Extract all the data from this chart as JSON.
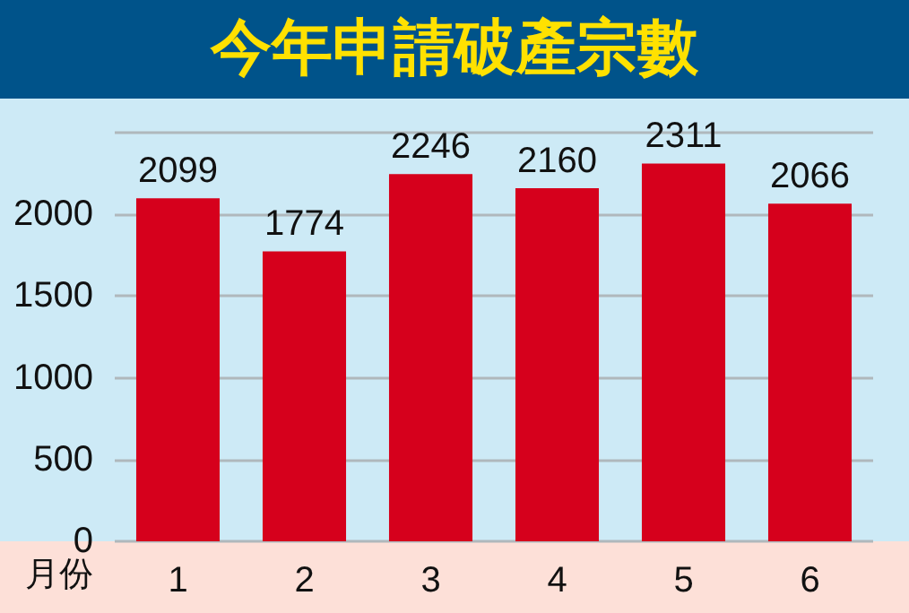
{
  "chart_data": {
    "type": "bar",
    "title": "今年申請破產宗數",
    "xlabel": "月份",
    "categories": [
      "1",
      "2",
      "3",
      "4",
      "5",
      "6"
    ],
    "values": [
      2099,
      1774,
      2246,
      2160,
      2311,
      2066
    ],
    "color": "#d6001c",
    "ylim": [
      0,
      2500
    ],
    "yticks": [
      0,
      500,
      1000,
      1500,
      2000,
      {
        "value": 2500,
        "label": null
      }
    ],
    "grid": "y",
    "data_labels": true
  }
}
